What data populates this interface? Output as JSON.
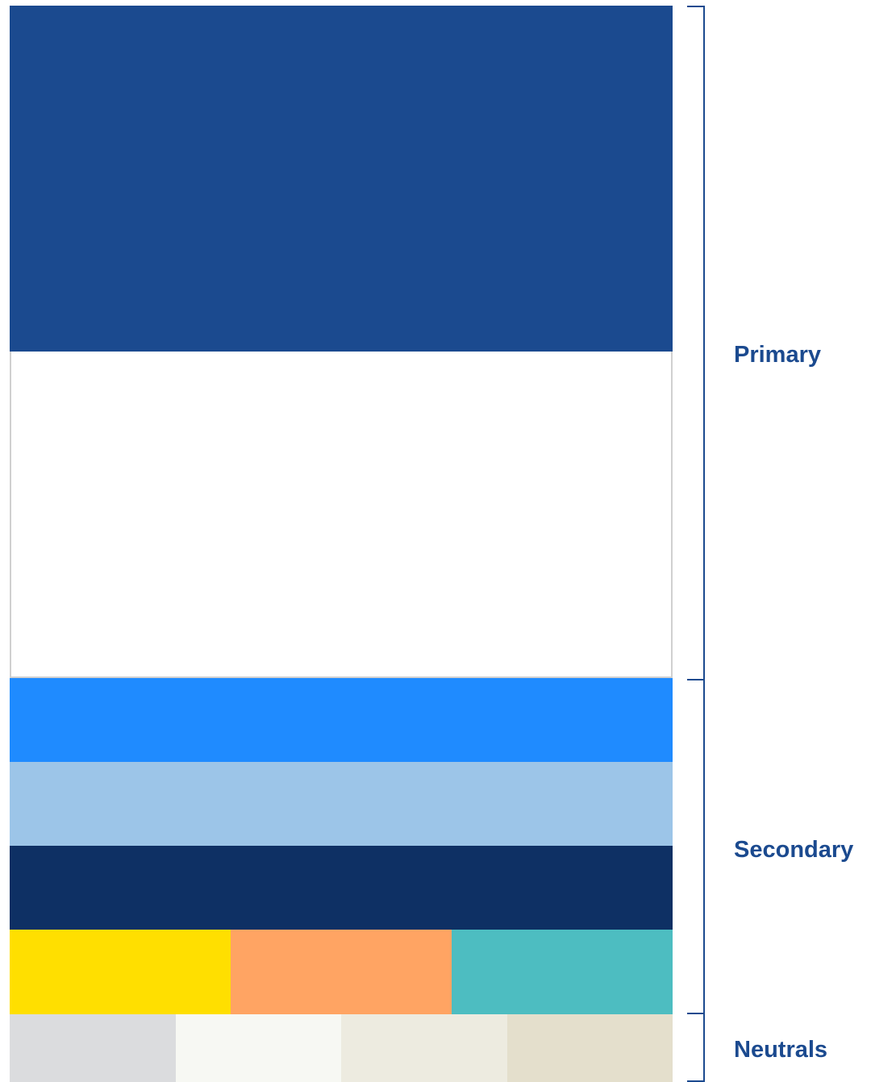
{
  "palette": {
    "primary": {
      "label": "Primary",
      "colors": [
        {
          "name": "primary-navy",
          "hex": "#1b4a8f"
        },
        {
          "name": "primary-white",
          "hex": "#ffffff"
        }
      ]
    },
    "secondary": {
      "label": "Secondary",
      "colors": [
        {
          "name": "secondary-bright-blue",
          "hex": "#1f8bff"
        },
        {
          "name": "secondary-light-blue",
          "hex": "#9cc5e8"
        },
        {
          "name": "secondary-dark-navy",
          "hex": "#0e3064"
        },
        {
          "name": "secondary-yellow",
          "hex": "#ffdf00"
        },
        {
          "name": "secondary-orange",
          "hex": "#ffa463"
        },
        {
          "name": "secondary-teal",
          "hex": "#4dbdc1"
        }
      ]
    },
    "neutrals": {
      "label": "Neutrals",
      "colors": [
        {
          "name": "neutral-gray",
          "hex": "#dbdcde"
        },
        {
          "name": "neutral-off-white",
          "hex": "#f7f8f3"
        },
        {
          "name": "neutral-cream",
          "hex": "#edebe0"
        },
        {
          "name": "neutral-beige",
          "hex": "#e4dfcc"
        }
      ]
    },
    "accent": "#1b4a8f"
  }
}
